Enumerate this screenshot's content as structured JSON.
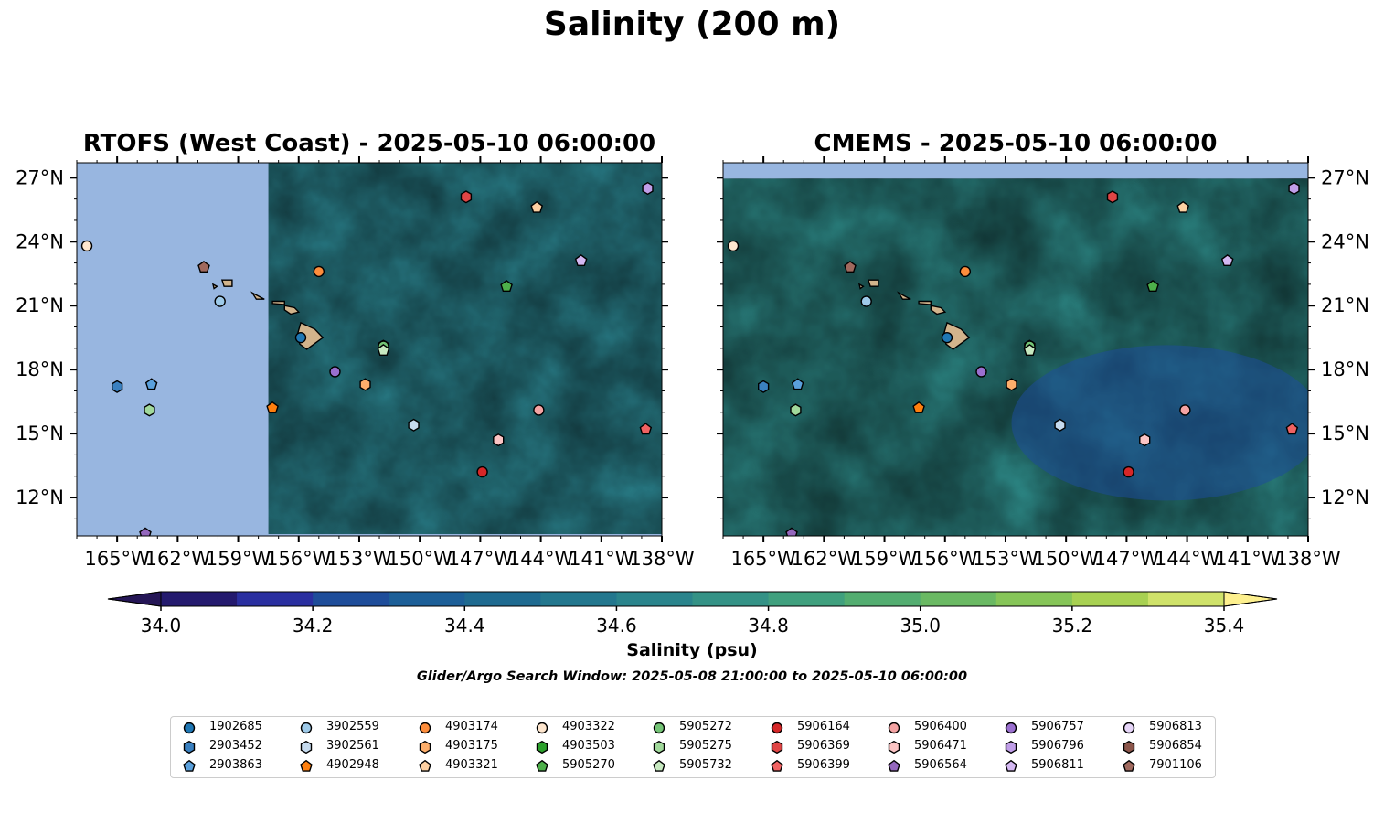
{
  "figure": {
    "title": "Salinity (200 m)",
    "search_window": "Glider/Argo Search Window: 2025-05-08 21:00:00 to 2025-05-10 06:00:00"
  },
  "panels": [
    {
      "title": "RTOFS (West Coast) - 2025-05-10 06:00:00",
      "data_extent_lon": [
        -157.5,
        -138.0
      ],
      "y_ticks_side": "left"
    },
    {
      "title": "CMEMS - 2025-05-10 06:00:00",
      "data_extent_lon": [
        -167.0,
        -138.0
      ],
      "y_ticks_side": "right"
    }
  ],
  "map": {
    "lon_range": [
      -167.0,
      -138.0
    ],
    "lat_range": [
      10.2,
      27.7
    ],
    "x_ticks": [
      "165°W",
      "162°W",
      "159°W",
      "156°W",
      "153°W",
      "150°W",
      "147°W",
      "144°W",
      "141°W",
      "138°W"
    ],
    "x_tick_values": [
      -165,
      -162,
      -159,
      -156,
      -153,
      -150,
      -147,
      -144,
      -141,
      -138
    ],
    "y_ticks": [
      "27°N",
      "24°N",
      "21°N",
      "18°N",
      "15°N",
      "12°N"
    ],
    "y_tick_values": [
      27,
      24,
      21,
      18,
      15,
      12
    ],
    "land_color": "#d2b48c",
    "nodata_color": "#98b6e0"
  },
  "colorbar": {
    "label": "Salinity (psu)",
    "tick_labels": [
      "34.0",
      "34.2",
      "34.4",
      "34.6",
      "34.8",
      "35.0",
      "35.2",
      "35.4"
    ],
    "range": [
      34.0,
      35.4
    ],
    "step": 0.1,
    "colors": [
      "#241a6e",
      "#2a2fa0",
      "#1e4d9a",
      "#1c5f98",
      "#1e6a90",
      "#23778e",
      "#2a848c",
      "#349286",
      "#40a07e",
      "#53ad70",
      "#6ab963",
      "#86c558",
      "#a8d152",
      "#cfe26a"
    ],
    "under_color": "#251656",
    "over_color": "#fdf08e"
  },
  "markers": [
    {
      "id": "1902685",
      "shape": "circle",
      "color": "#1f77b4",
      "lon": -155.9,
      "lat": 19.5
    },
    {
      "id": "2903452",
      "shape": "hexagon",
      "color": "#3a80c0",
      "lon": -165.0,
      "lat": 17.2
    },
    {
      "id": "2903863",
      "shape": "pentagon",
      "color": "#5aa0dc",
      "lon": -163.3,
      "lat": 17.3
    },
    {
      "id": "3902559",
      "shape": "circle",
      "color": "#9ecae9",
      "lon": -159.9,
      "lat": 21.2
    },
    {
      "id": "3902561",
      "shape": "hexagon",
      "color": "#c6dbef",
      "lon": -150.3,
      "lat": 15.4
    },
    {
      "id": "4902948",
      "shape": "pentagon",
      "color": "#ff7f0e",
      "lon": -157.3,
      "lat": 16.2
    },
    {
      "id": "4903174",
      "shape": "circle",
      "color": "#fd8d3c",
      "lon": -155.0,
      "lat": 22.6
    },
    {
      "id": "4903175",
      "shape": "hexagon",
      "color": "#fdae6b",
      "lon": -152.7,
      "lat": 17.3
    },
    {
      "id": "4903321",
      "shape": "pentagon",
      "color": "#fdd0a2",
      "lon": -144.2,
      "lat": 25.6
    },
    {
      "id": "4903322",
      "shape": "circle",
      "color": "#fee6ce",
      "lon": -166.5,
      "lat": 23.8
    },
    {
      "id": "4903503",
      "shape": "hexagon",
      "color": "#2ca02c",
      "lon": -151.8,
      "lat": 19.1
    },
    {
      "id": "5905270",
      "shape": "pentagon",
      "color": "#4daf4a",
      "lon": -145.7,
      "lat": 21.9
    },
    {
      "id": "5905272",
      "shape": "circle",
      "color": "#74c476",
      "lon": -151.8,
      "lat": 19.1
    },
    {
      "id": "5905275",
      "shape": "hexagon",
      "color": "#a1d99b",
      "lon": -163.4,
      "lat": 16.1
    },
    {
      "id": "5905732",
      "shape": "pentagon",
      "color": "#c7e9c0",
      "lon": -151.8,
      "lat": 18.9
    },
    {
      "id": "5906164",
      "shape": "circle",
      "color": "#d62728",
      "lon": -146.9,
      "lat": 13.2
    },
    {
      "id": "5906369",
      "shape": "hexagon",
      "color": "#e04545",
      "lon": -147.7,
      "lat": 26.1
    },
    {
      "id": "5906399",
      "shape": "pentagon",
      "color": "#f06262",
      "lon": -138.8,
      "lat": 15.2
    },
    {
      "id": "5906400",
      "shape": "circle",
      "color": "#f4a3a3",
      "lon": -144.1,
      "lat": 16.1
    },
    {
      "id": "5906471",
      "shape": "hexagon",
      "color": "#fbc4c4",
      "lon": -146.1,
      "lat": 14.7
    },
    {
      "id": "5906564",
      "shape": "pentagon",
      "color": "#9467bd",
      "lon": -163.6,
      "lat": 10.3
    },
    {
      "id": "5906757",
      "shape": "circle",
      "color": "#9a6fcf",
      "lon": -154.2,
      "lat": 17.9
    },
    {
      "id": "5906796",
      "shape": "hexagon",
      "color": "#c09ee8",
      "lon": -138.7,
      "lat": 26.5
    },
    {
      "id": "5906811",
      "shape": "pentagon",
      "color": "#d4b8f2",
      "lon": -142.0,
      "lat": 23.1
    },
    {
      "id": "5906813",
      "shape": "circle",
      "color": "#e6d5f8",
      "lon": -144.0,
      "lat": 20.0,
      "shown_on_map": false
    },
    {
      "id": "5906854",
      "shape": "hexagon",
      "color": "#8c564b",
      "lon": -144.0,
      "lat": 20.0,
      "shown_on_map": false
    },
    {
      "id": "7901106",
      "shape": "pentagon",
      "color": "#a0695e",
      "lon": -160.7,
      "lat": 22.8
    }
  ]
}
